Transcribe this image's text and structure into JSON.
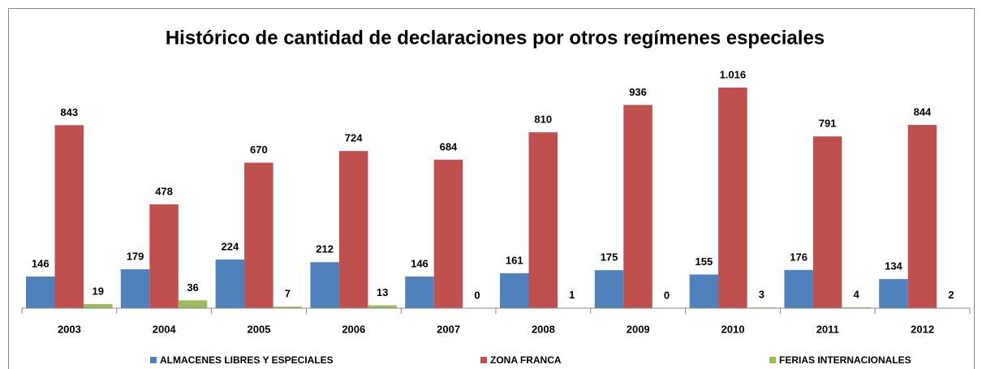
{
  "chart_data": {
    "type": "bar",
    "title": "Histórico de cantidad de declaraciones por otros regímenes especiales",
    "categories": [
      "2003",
      "2004",
      "2005",
      "2006",
      "2007",
      "2008",
      "2009",
      "2010",
      "2011",
      "2012"
    ],
    "series": [
      {
        "name": "ALMACENES LIBRES Y ESPECIALES",
        "color": "#4f81bd",
        "values": [
          146,
          179,
          224,
          212,
          146,
          161,
          175,
          155,
          176,
          134
        ]
      },
      {
        "name": "ZONA FRANCA",
        "color": "#c0504d",
        "values": [
          843,
          478,
          670,
          724,
          684,
          810,
          936,
          1016,
          791,
          844
        ],
        "value_labels": [
          "843",
          "478",
          "670",
          "724",
          "684",
          "810",
          "936",
          "1.016",
          "791",
          "844"
        ]
      },
      {
        "name": "FERIAS INTERNACIONALES",
        "color": "#9bbb59",
        "values": [
          19,
          36,
          7,
          13,
          0,
          1,
          0,
          3,
          4,
          2
        ]
      }
    ],
    "legend": "bottom"
  }
}
